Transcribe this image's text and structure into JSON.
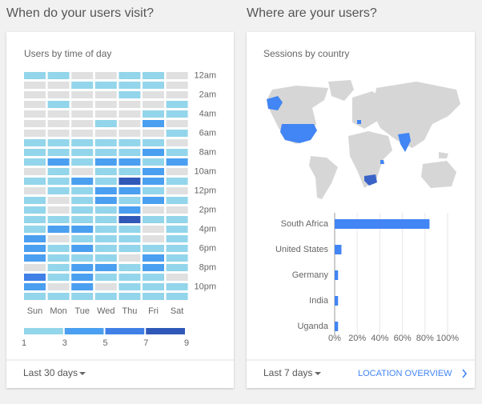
{
  "page": {
    "left_heading": "When do your users visit?",
    "right_heading": "Where are your users?",
    "left_footer": "Last 30 days",
    "right_footer": "Last 7 days",
    "right_link": "LOCATION OVERVIEW"
  },
  "chart_data": [
    {
      "type": "heatmap",
      "title": "Users by time of day",
      "x": [
        "Sun",
        "Mon",
        "Tue",
        "Wed",
        "Thu",
        "Fri",
        "Sat"
      ],
      "y": [
        "12am",
        null,
        "2am",
        null,
        "4am",
        null,
        "6am",
        null,
        "8am",
        null,
        "10am",
        null,
        "12pm",
        null,
        "2pm",
        null,
        "4pm",
        null,
        "6pm",
        null,
        "8pm",
        null,
        "10pm",
        null
      ],
      "values": [
        [
          2,
          2,
          0,
          0,
          2,
          2,
          0
        ],
        [
          0,
          0,
          2,
          2,
          2,
          2,
          0
        ],
        [
          0,
          0,
          0,
          0,
          2,
          0,
          0
        ],
        [
          0,
          2,
          0,
          0,
          0,
          0,
          2
        ],
        [
          0,
          0,
          0,
          0,
          0,
          2,
          2
        ],
        [
          0,
          0,
          0,
          2,
          0,
          4,
          0
        ],
        [
          0,
          0,
          0,
          0,
          0,
          0,
          2
        ],
        [
          2,
          2,
          2,
          2,
          2,
          2,
          0
        ],
        [
          2,
          2,
          2,
          2,
          2,
          4,
          2
        ],
        [
          2,
          4,
          2,
          4,
          4,
          2,
          4
        ],
        [
          0,
          2,
          0,
          2,
          2,
          4,
          0
        ],
        [
          2,
          2,
          4,
          2,
          8,
          4,
          2
        ],
        [
          0,
          2,
          2,
          4,
          4,
          2,
          0
        ],
        [
          2,
          0,
          2,
          4,
          2,
          4,
          2
        ],
        [
          2,
          0,
          2,
          2,
          4,
          0,
          0
        ],
        [
          2,
          2,
          2,
          2,
          8,
          2,
          2
        ],
        [
          2,
          4,
          4,
          2,
          2,
          0,
          2
        ],
        [
          4,
          0,
          2,
          2,
          2,
          0,
          2
        ],
        [
          4,
          2,
          4,
          2,
          2,
          2,
          2
        ],
        [
          4,
          2,
          2,
          2,
          0,
          4,
          2
        ],
        [
          0,
          2,
          4,
          4,
          2,
          4,
          2
        ],
        [
          6,
          2,
          4,
          2,
          2,
          2,
          0
        ],
        [
          4,
          0,
          4,
          0,
          2,
          2,
          2
        ],
        [
          2,
          2,
          2,
          2,
          2,
          2,
          2
        ]
      ],
      "empty_color": "#e0e0e0",
      "colors": [
        "#93d5ea",
        "#4a9ff0",
        "#3f7fe6",
        "#2f58b8"
      ],
      "colorbar_ticks": [
        1,
        3,
        5,
        7,
        9
      ]
    },
    {
      "type": "hbar",
      "title": "Sessions by country",
      "categories": [
        "South Africa",
        "United States",
        "Germany",
        "India",
        "Uganda"
      ],
      "values": [
        84,
        6,
        3,
        3,
        3
      ],
      "color": "#4285f4",
      "xlim": [
        0,
        100
      ],
      "xticks": [
        {
          "value": 0,
          "label": "0%"
        },
        {
          "value": 20,
          "label": "20%"
        },
        {
          "value": 40,
          "label": "40%"
        },
        {
          "value": 60,
          "label": "60%"
        },
        {
          "value": 80,
          "label": "80%"
        },
        {
          "value": 100,
          "label": "100%"
        }
      ],
      "grid": true
    }
  ]
}
